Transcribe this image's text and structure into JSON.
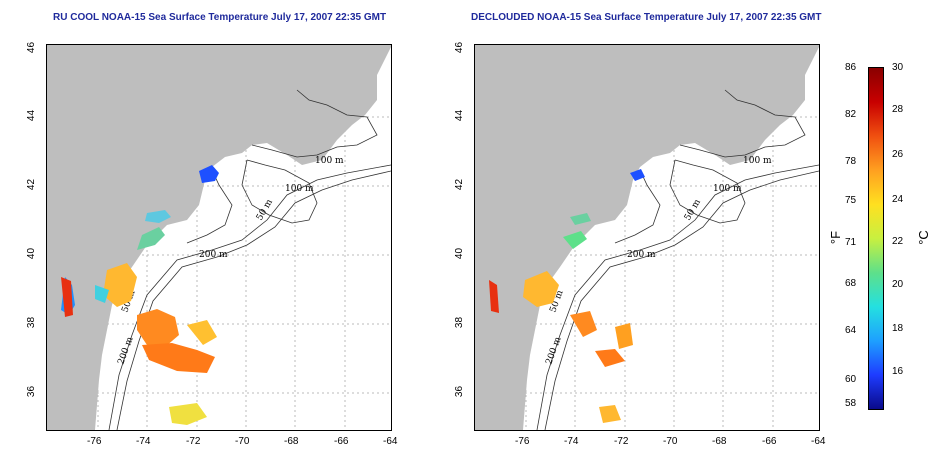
{
  "titles": {
    "left": "RU COOL NOAA-15 Sea Surface Temperature July 17, 2007 22:35 GMT",
    "right": "DECLOUDED NOAA-15 Sea Surface Temperature July 17, 2007 22:35 GMT"
  },
  "axes": {
    "x_ticks": [
      "-76",
      "-74",
      "-72",
      "-70",
      "-68",
      "-66",
      "-64"
    ],
    "y_ticks": [
      "36",
      "38",
      "40",
      "42",
      "44",
      "46"
    ]
  },
  "contours": [
    "100 m",
    "100 m",
    "50 m",
    "200 m",
    "50 m",
    "200 m"
  ],
  "colorbar": {
    "fahrenheit_ticks": [
      "86",
      "82",
      "78",
      "75",
      "71",
      "68",
      "64",
      "60",
      "58"
    ],
    "celsius_ticks": [
      "30",
      "28",
      "26",
      "24",
      "22",
      "20",
      "18",
      "16"
    ],
    "unit_f": "°F",
    "unit_c": "°C",
    "colors": [
      "#0a0a8a",
      "#1e3cff",
      "#1ea0ff",
      "#24e0e0",
      "#5ee08a",
      "#c8f040",
      "#ffe020",
      "#ffa020",
      "#f05010",
      "#c80000",
      "#8a0000"
    ]
  }
}
